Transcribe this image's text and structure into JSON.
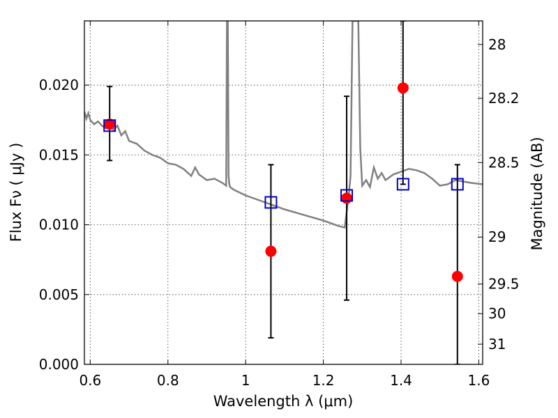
{
  "chart_data": {
    "type": "scatter",
    "title": "",
    "xlabel": "Wavelength  λ (μm)",
    "ylabel": "Flux  Fν  ( μJy )",
    "y2label": "Magnitude (AB)",
    "xlim": [
      0.585,
      1.61
    ],
    "ylim": [
      0.0,
      0.0246
    ],
    "grid": true,
    "x_ticks": [
      0.6,
      0.8,
      1.0,
      1.2,
      1.4,
      1.6
    ],
    "x_tick_labels": [
      "0.6",
      "0.8",
      "1",
      "1.2",
      "1.4",
      "1.6"
    ],
    "y_ticks": [
      0.0,
      0.005,
      0.01,
      0.015,
      0.02
    ],
    "y_tick_labels": [
      "0.000",
      "0.005",
      "0.010",
      "0.015",
      "0.020"
    ],
    "y2_ticks": [
      28,
      28.2,
      28.5,
      29,
      29.5,
      30,
      31
    ],
    "y2_tick_labels": [
      "28",
      "28.2",
      "28.5",
      "29",
      "29.5",
      "30",
      "31"
    ],
    "colors": {
      "sed_line": "#808080",
      "observed": "#ff0000",
      "model": "#0000cc",
      "errorbar": "#000000"
    },
    "sed_model": {
      "x": [
        0.585,
        0.59,
        0.595,
        0.6,
        0.61,
        0.62,
        0.63,
        0.64,
        0.65,
        0.66,
        0.67,
        0.68,
        0.69,
        0.7,
        0.72,
        0.74,
        0.76,
        0.78,
        0.8,
        0.82,
        0.84,
        0.86,
        0.87,
        0.88,
        0.9,
        0.92,
        0.94,
        0.95,
        0.952,
        0.954,
        0.956,
        0.958,
        0.96,
        0.97,
        1.0,
        1.05,
        1.1,
        1.15,
        1.2,
        1.22,
        1.24,
        1.255,
        1.265,
        1.27,
        1.275,
        1.28,
        1.285,
        1.29,
        1.295,
        1.3,
        1.31,
        1.32,
        1.33,
        1.34,
        1.35,
        1.36,
        1.38,
        1.4,
        1.42,
        1.44,
        1.46,
        1.48,
        1.5,
        1.52,
        1.54,
        1.56,
        1.58,
        1.61
      ],
      "y": [
        0.0181,
        0.0176,
        0.018,
        0.0175,
        0.0172,
        0.0174,
        0.0171,
        0.0169,
        0.0172,
        0.0168,
        0.0171,
        0.0164,
        0.0167,
        0.016,
        0.0158,
        0.0153,
        0.015,
        0.0148,
        0.0144,
        0.0143,
        0.014,
        0.0135,
        0.0141,
        0.0136,
        0.0132,
        0.0133,
        0.013,
        0.0128,
        0.025,
        0.025,
        0.0135,
        0.0129,
        0.0127,
        0.0125,
        0.0121,
        0.0116,
        0.0111,
        0.0107,
        0.0103,
        0.0101,
        0.0099,
        0.0098,
        0.012,
        0.0135,
        0.0246,
        0.0246,
        0.0246,
        0.0246,
        0.0155,
        0.0128,
        0.0132,
        0.0127,
        0.0141,
        0.0133,
        0.0137,
        0.0132,
        0.0136,
        0.0138,
        0.014,
        0.0139,
        0.0137,
        0.0133,
        0.0128,
        0.0129,
        0.0132,
        0.0131,
        0.013,
        0.0129
      ]
    },
    "series": [
      {
        "marker": "filled-circle",
        "x": [
          0.65,
          1.065,
          1.26,
          1.405,
          1.545
        ],
        "y": [
          0.0172,
          0.0081,
          0.0119,
          0.0198,
          0.0063
        ],
        "yerr_low": [
          0.0146,
          0.0019,
          0.0046,
          0.0129,
          0.0
        ],
        "yerr_high": [
          0.0199,
          0.0143,
          0.0192,
          0.0246,
          0.0143
        ]
      },
      {
        "marker": "open-square",
        "x": [
          0.65,
          1.065,
          1.26,
          1.405,
          1.545
        ],
        "y": [
          0.0171,
          0.0116,
          0.0121,
          0.0129,
          0.0129
        ]
      }
    ]
  }
}
